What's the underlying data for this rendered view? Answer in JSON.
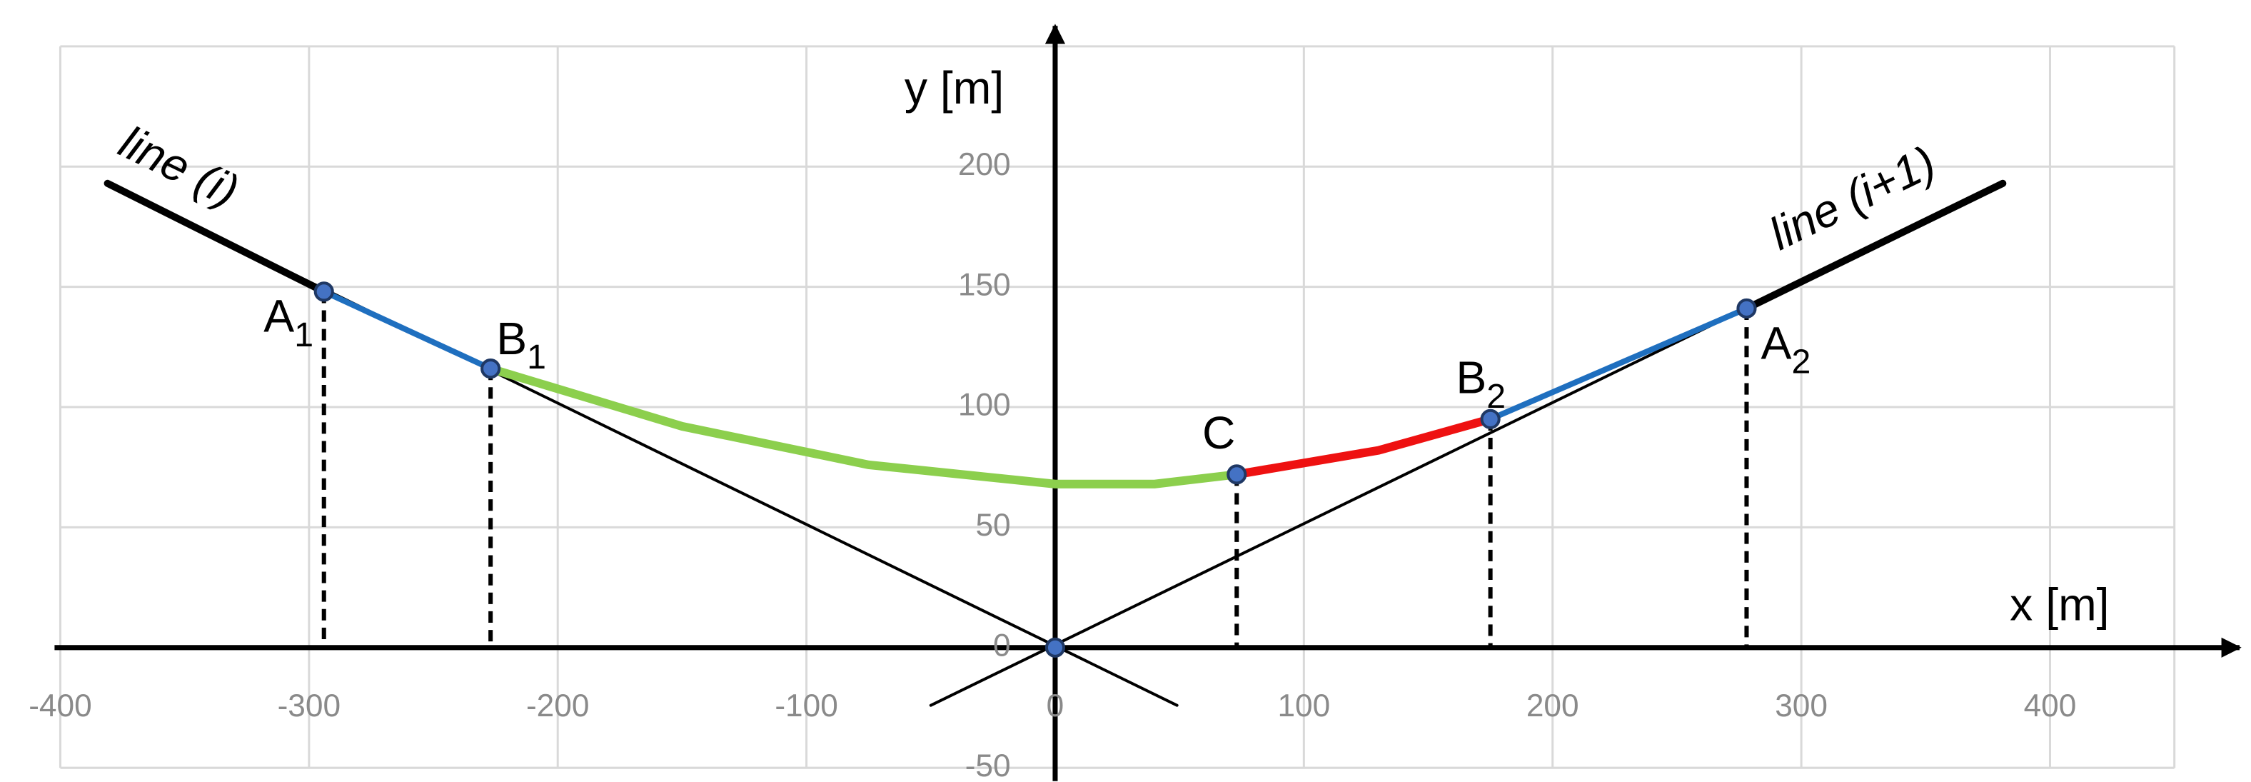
{
  "chart_data": {
    "type": "line",
    "xlabel": "x [m]",
    "ylabel": "y [m]",
    "xlim": [
      -400,
      450
    ],
    "ylim": [
      -50,
      250
    ],
    "xticks": [
      -400,
      -300,
      -200,
      -100,
      0,
      100,
      200,
      300,
      400
    ],
    "yticks": [
      -50,
      0,
      50,
      100,
      150,
      200
    ],
    "grid": true,
    "series": [
      {
        "name": "line (i)",
        "color": "#000000",
        "width": 2,
        "label_at": "start",
        "x": [
          -381,
          49
        ],
        "y": [
          193,
          -24
        ]
      },
      {
        "name": "line (i+1)",
        "color": "#000000",
        "width": 2,
        "label_at": "end",
        "x": [
          -50,
          381
        ],
        "y": [
          -24,
          193
        ]
      },
      {
        "color": "#000000",
        "width": 5,
        "x": [
          -381,
          -294
        ],
        "y": [
          193,
          148
        ]
      },
      {
        "color": "#000000",
        "width": 5,
        "x": [
          278,
          381
        ],
        "y": [
          141,
          193
        ]
      },
      {
        "color": "#1f6fbf",
        "width": 4,
        "x": [
          -294,
          -227
        ],
        "y": [
          148,
          116
        ]
      },
      {
        "color": "#1f6fbf",
        "width": 4,
        "x": [
          175,
          278
        ],
        "y": [
          95,
          141
        ]
      },
      {
        "color": "#8ccf4d",
        "width": 6,
        "x": [
          -227,
          -150,
          -75,
          0,
          40,
          73
        ],
        "y": [
          116,
          92,
          76,
          68,
          68,
          72
        ]
      },
      {
        "color": "#ee1111",
        "width": 6,
        "x": [
          73,
          130,
          175
        ],
        "y": [
          72,
          82,
          95
        ]
      }
    ],
    "points": [
      {
        "label": "A",
        "sub": "1",
        "x": -294,
        "y": 148,
        "anchor": "left"
      },
      {
        "label": "B",
        "sub": "1",
        "x": -227,
        "y": 116,
        "anchor": "right-up"
      },
      {
        "label": "C",
        "x": 73,
        "y": 72,
        "anchor": "left-up"
      },
      {
        "label": "B",
        "sub": "2",
        "x": 175,
        "y": 95,
        "anchor": "left-up"
      },
      {
        "label": "A",
        "sub": "2",
        "x": 278,
        "y": 141,
        "anchor": "right"
      }
    ],
    "origin_point": {
      "x": 0,
      "y": 0
    }
  }
}
